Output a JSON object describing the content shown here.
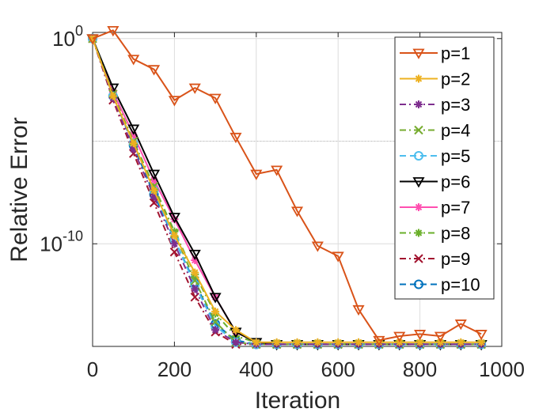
{
  "chart_data": {
    "type": "line",
    "xlabel": "Iteration",
    "ylabel": "Relative Error",
    "xlim": [
      0,
      1000
    ],
    "ylim_log10": [
      -15,
      0.3
    ],
    "y_scale": "log",
    "grid": true,
    "legend_position": "top-right",
    "x_ticks": [
      0,
      200,
      400,
      600,
      800,
      1000
    ],
    "x_tick_labels": [
      "0",
      "200",
      "400",
      "600",
      "800",
      "1000"
    ],
    "y_tick_labels": [
      {
        "log10": 0,
        "base": "10",
        "exp": "0"
      },
      {
        "log10": -10,
        "base": "10",
        "exp": "-10"
      }
    ],
    "x": [
      0,
      50,
      100,
      150,
      200,
      250,
      300,
      350,
      400,
      450,
      500,
      550,
      600,
      650,
      700,
      750,
      800,
      850,
      900,
      950
    ],
    "series": [
      {
        "name": "p=1",
        "color": "#D95319",
        "style": "solid",
        "marker": "triangle-down",
        "log10y": [
          0,
          0.4,
          -1.0,
          -1.5,
          -3.0,
          -2.4,
          -2.9,
          -4.8,
          -6.6,
          -6.4,
          -8.4,
          -10.1,
          -10.6,
          -13.2,
          -14.7,
          -14.5,
          -14.4,
          -14.5,
          -13.9,
          -14.4
        ]
      },
      {
        "name": "p=2",
        "color": "#EDB120",
        "style": "solid",
        "marker": "asterisk",
        "log10y": [
          0,
          -2.8,
          -5.1,
          -7.4,
          -9.6,
          -11.4,
          -13.3,
          -14.2,
          -14.8,
          -14.8,
          -14.8,
          -14.8,
          -14.8,
          -14.8,
          -14.8,
          -14.8,
          -14.8,
          -14.8,
          -14.8,
          -14.8
        ]
      },
      {
        "name": "p=3",
        "color": "#7E2F8E",
        "style": "dashdot",
        "marker": "asterisk",
        "log10y": [
          0,
          -2.9,
          -5.4,
          -7.7,
          -10.0,
          -12.2,
          -14.2,
          -14.8,
          -14.9,
          -14.9,
          -14.9,
          -14.9,
          -14.9,
          -14.9,
          -14.9,
          -14.9,
          -14.9,
          -14.9,
          -14.9,
          -14.9
        ]
      },
      {
        "name": "p=4",
        "color": "#77AC30",
        "style": "dashdot",
        "marker": "x",
        "log10y": [
          0,
          -2.7,
          -5.0,
          -7.2,
          -9.5,
          -11.8,
          -13.8,
          -14.8,
          -14.9,
          -14.9,
          -14.9,
          -14.9,
          -14.9,
          -14.9,
          -14.9,
          -14.9,
          -14.9,
          -14.9,
          -14.9,
          -14.9
        ]
      },
      {
        "name": "p=5",
        "color": "#4DBEEE",
        "style": "dashed",
        "marker": "circle",
        "log10y": [
          0,
          -2.8,
          -5.1,
          -7.4,
          -9.8,
          -12.0,
          -14.0,
          -14.8,
          -14.9,
          -14.9,
          -14.9,
          -14.9,
          -14.9,
          -14.9,
          -14.9,
          -14.9,
          -14.9,
          -14.9,
          -14.9,
          -14.9
        ]
      },
      {
        "name": "p=6",
        "color": "#000000",
        "style": "solid",
        "marker": "triangle-down",
        "log10y": [
          0,
          -2.4,
          -4.4,
          -6.6,
          -8.7,
          -10.5,
          -12.6,
          -14.3,
          -14.8,
          -14.9,
          -14.9,
          -14.9,
          -14.9,
          -14.9,
          -14.9,
          -14.9,
          -14.9,
          -14.9,
          -14.9,
          -14.9
        ]
      },
      {
        "name": "p=7",
        "color": "#FF4FB0",
        "style": "solid",
        "marker": "asterisk",
        "log10y": [
          0,
          -2.6,
          -4.7,
          -6.9,
          -8.8,
          -10.8,
          -12.6,
          -14.3,
          -14.8,
          -14.9,
          -14.9,
          -14.9,
          -14.9,
          -14.9,
          -14.9,
          -14.9,
          -14.9,
          -14.9,
          -14.9,
          -14.9
        ]
      },
      {
        "name": "p=8",
        "color": "#6AAF2A",
        "style": "dashdot",
        "marker": "asterisk",
        "log10y": [
          0,
          -2.7,
          -5.0,
          -7.2,
          -9.4,
          -11.5,
          -13.4,
          -14.5,
          -14.8,
          -14.9,
          -14.9,
          -14.9,
          -14.9,
          -14.9,
          -14.9,
          -14.9,
          -14.9,
          -14.9,
          -14.9,
          -14.9
        ]
      },
      {
        "name": "p=9",
        "color": "#A2142F",
        "style": "dashdot",
        "marker": "x",
        "log10y": [
          0,
          -3.0,
          -5.6,
          -8.0,
          -10.4,
          -12.6,
          -14.3,
          -14.9,
          -14.9,
          -14.9,
          -14.9,
          -14.9,
          -14.9,
          -14.9,
          -14.9,
          -14.9,
          -14.9,
          -14.9,
          -14.9,
          -14.9
        ]
      },
      {
        "name": "p=10",
        "color": "#0072BD",
        "style": "dashed",
        "marker": "circle",
        "log10y": [
          0,
          -2.8,
          -5.2,
          -7.6,
          -9.8,
          -11.9,
          -13.9,
          -14.7,
          -14.9,
          -14.9,
          -14.9,
          -14.9,
          -14.9,
          -14.9,
          -14.9,
          -14.9,
          -14.9,
          -14.9,
          -14.9,
          -14.9
        ]
      }
    ]
  }
}
